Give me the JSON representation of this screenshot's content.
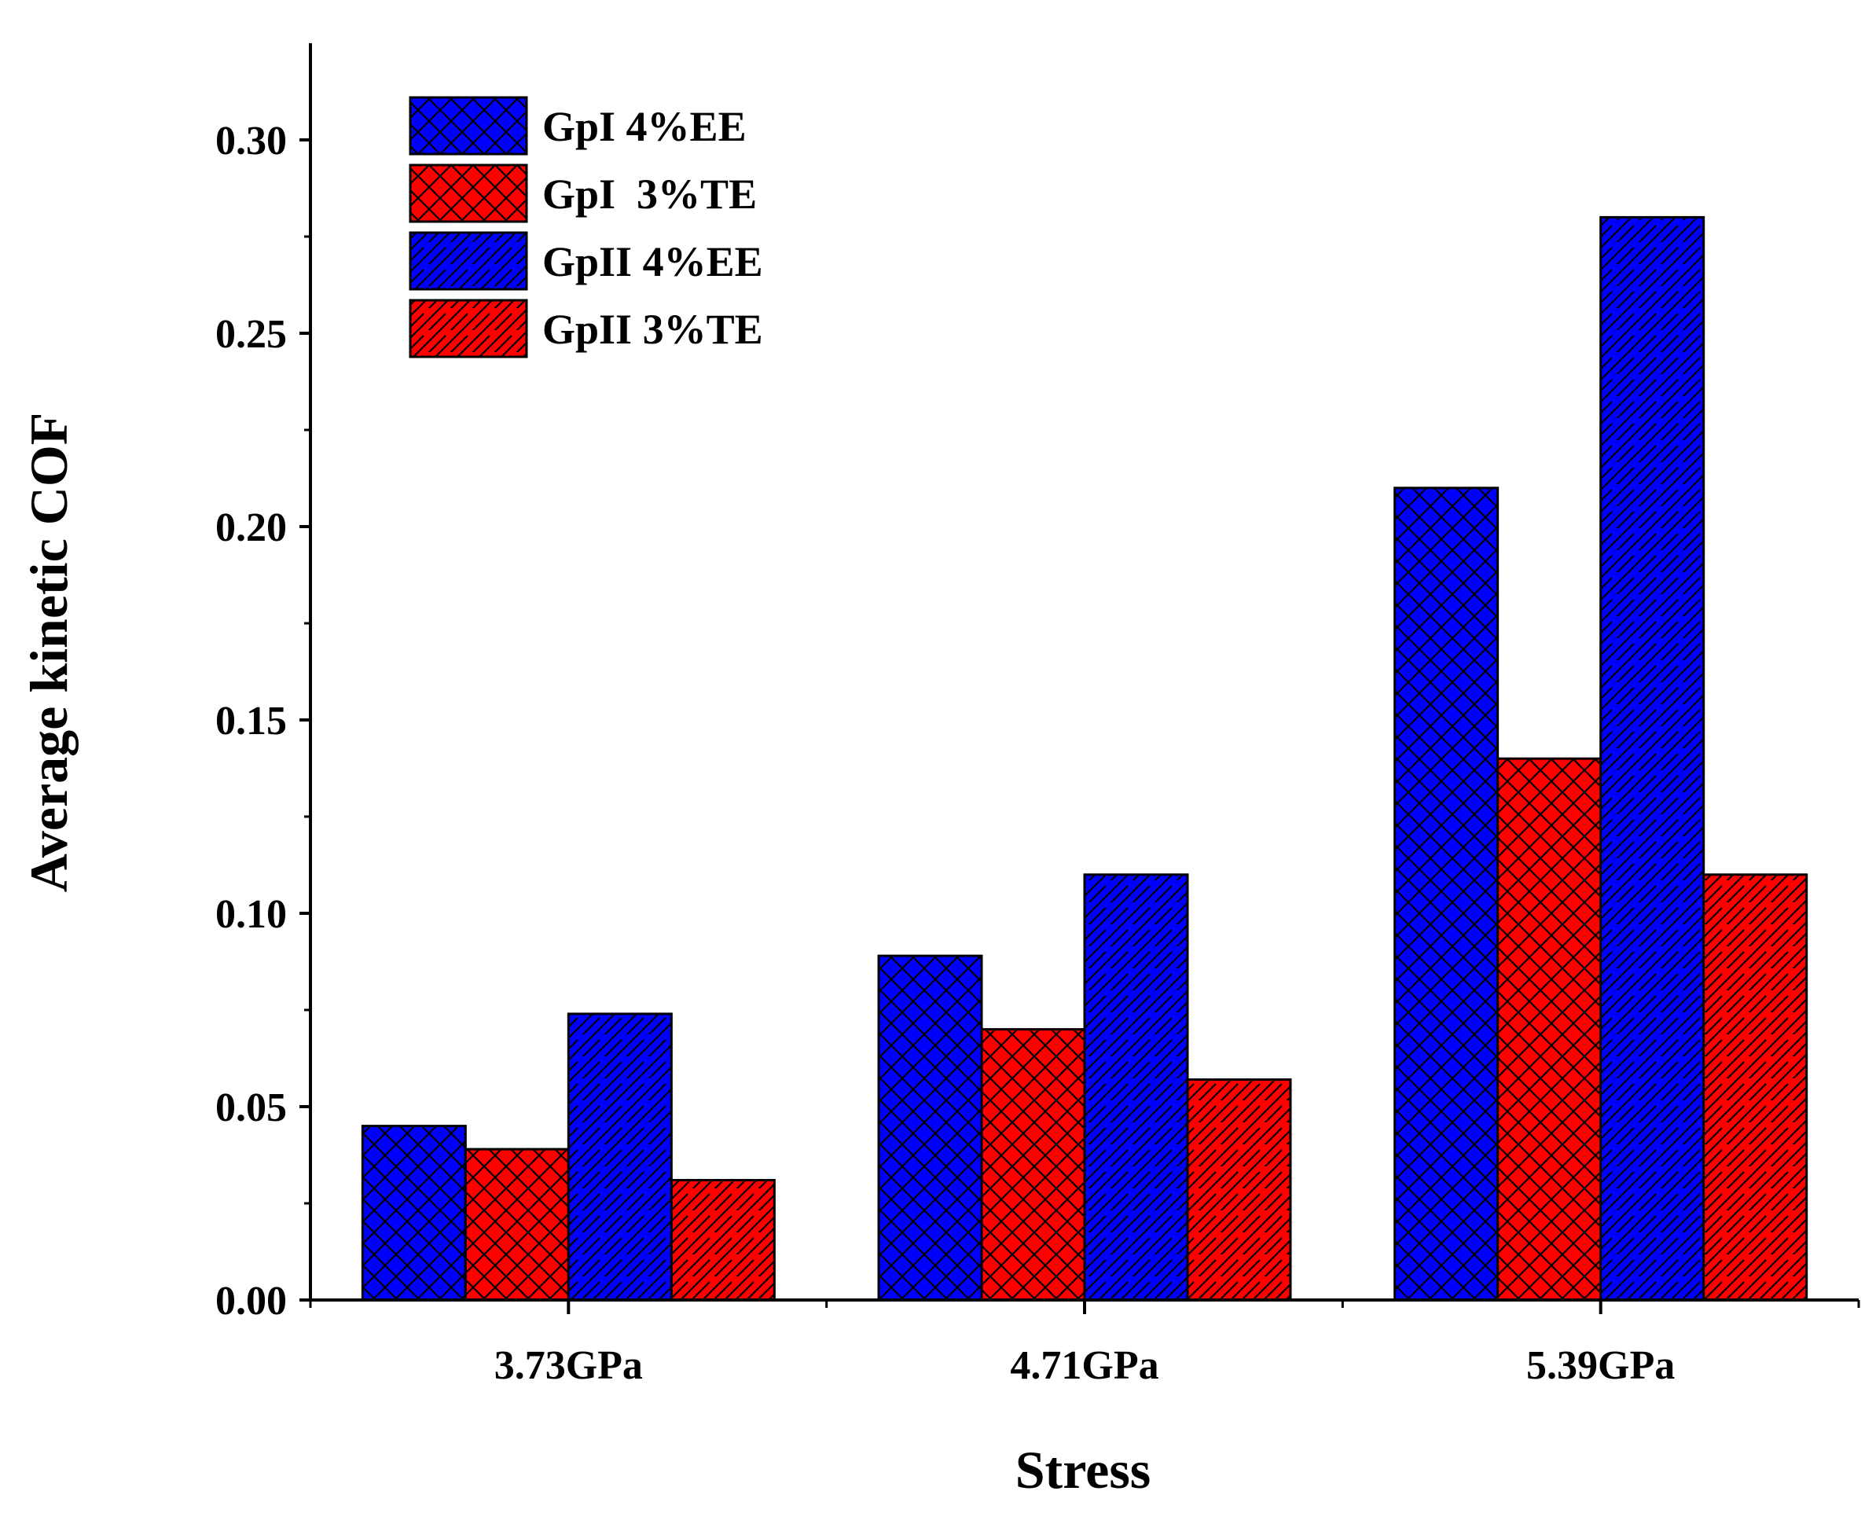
{
  "chart_data": {
    "type": "bar",
    "xlabel": "Stress",
    "ylabel": "Average kinetic COF",
    "categories": [
      "3.73GPa",
      "4.71GPa",
      "5.39GPa"
    ],
    "ylim": [
      0,
      0.325
    ],
    "yticks": [
      "0.00",
      "0.05",
      "0.10",
      "0.15",
      "0.20",
      "0.25",
      "0.30"
    ],
    "grid": false,
    "legend_position": "top-left",
    "series": [
      {
        "name": "GpI 4%EE",
        "values": [
          0.045,
          0.089,
          0.21
        ],
        "color": "#0000FF",
        "pattern": "crosshatch"
      },
      {
        "name": "GpI  3%TE",
        "values": [
          0.039,
          0.07,
          0.14
        ],
        "color": "#FF0000",
        "pattern": "crosshatch"
      },
      {
        "name": "GpII 4%EE",
        "values": [
          0.074,
          0.11,
          0.28
        ],
        "color": "#0000FF",
        "pattern": "diagonal"
      },
      {
        "name": "GpII 3%TE",
        "values": [
          0.031,
          0.057,
          0.11
        ],
        "color": "#FF0000",
        "pattern": "diagonal"
      }
    ]
  }
}
